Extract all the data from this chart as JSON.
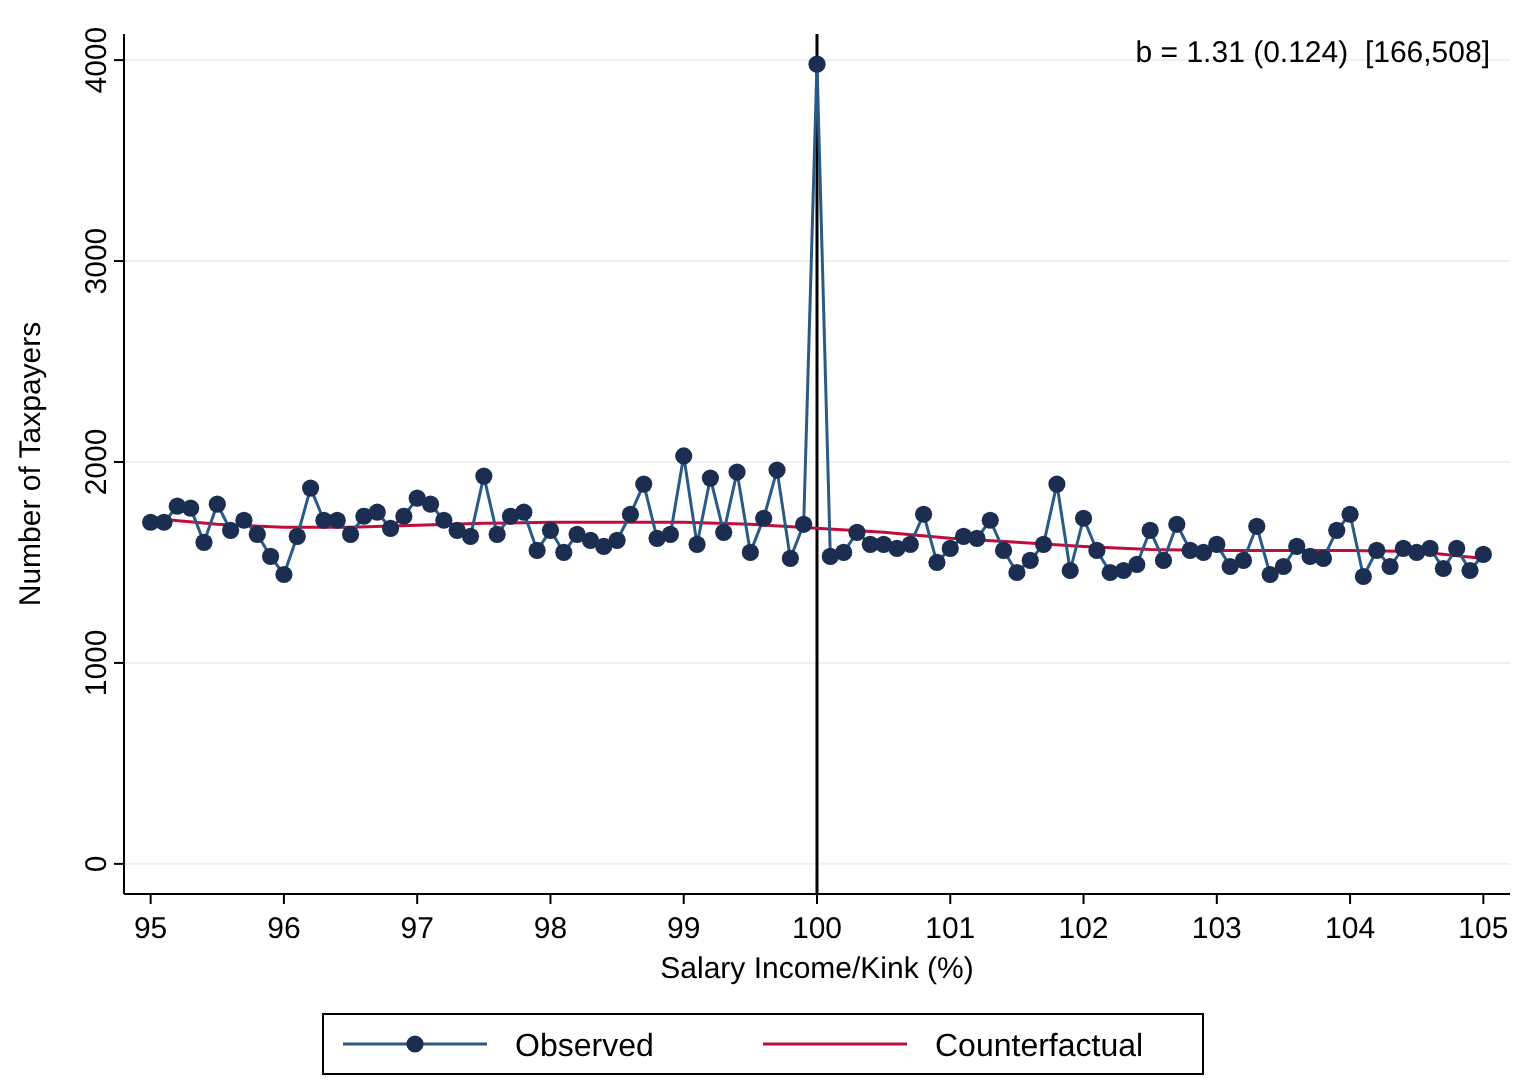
{
  "chart_data": {
    "type": "line",
    "xlabel": "Salary Income/Kink (%)",
    "ylabel": "Number of Taxpayers",
    "annotations": [
      "b = 1.31 (0.124)  [166,508]"
    ],
    "x": [
      95,
      95.1,
      95.2,
      95.3,
      95.4,
      95.5,
      95.6,
      95.7,
      95.8,
      95.9,
      96,
      96.1,
      96.2,
      96.3,
      96.4,
      96.5,
      96.6,
      96.7,
      96.8,
      96.9,
      97,
      97.1,
      97.2,
      97.3,
      97.4,
      97.5,
      97.6,
      97.7,
      97.8,
      97.9,
      98,
      98.1,
      98.2,
      98.3,
      98.4,
      98.5,
      98.6,
      98.7,
      98.8,
      98.9,
      99,
      99.1,
      99.2,
      99.3,
      99.4,
      99.5,
      99.6,
      99.7,
      99.8,
      99.9,
      100,
      100.1,
      100.2,
      100.3,
      100.4,
      100.5,
      100.6,
      100.7,
      100.8,
      100.9,
      101,
      101.1,
      101.2,
      101.3,
      101.4,
      101.5,
      101.6,
      101.7,
      101.8,
      101.9,
      102,
      102.1,
      102.2,
      102.3,
      102.4,
      102.5,
      102.6,
      102.7,
      102.8,
      102.9,
      103,
      103.1,
      103.2,
      103.3,
      103.4,
      103.5,
      103.6,
      103.7,
      103.8,
      103.9,
      104,
      104.1,
      104.2,
      104.3,
      104.4,
      104.5,
      104.6,
      104.7,
      104.8,
      104.9,
      105
    ],
    "series": [
      {
        "name": "Observed",
        "color": "#1c2d52",
        "marker": "circle",
        "values": [
          1700,
          1700,
          1780,
          1770,
          1600,
          1790,
          1660,
          1710,
          1640,
          1530,
          1440,
          1630,
          1870,
          1710,
          1710,
          1640,
          1730,
          1750,
          1670,
          1730,
          1820,
          1790,
          1710,
          1660,
          1630,
          1930,
          1640,
          1730,
          1750,
          1560,
          1660,
          1550,
          1640,
          1610,
          1580,
          1610,
          1740,
          1890,
          1620,
          1640,
          2030,
          1590,
          1920,
          1650,
          1950,
          1550,
          1720,
          1960,
          1520,
          1690,
          3980,
          1530,
          1550,
          1650,
          1590,
          1590,
          1570,
          1590,
          1740,
          1500,
          1570,
          1630,
          1620,
          1710,
          1560,
          1450,
          1510,
          1590,
          1890,
          1460,
          1720,
          1560,
          1450,
          1460,
          1490,
          1660,
          1510,
          1690,
          1560,
          1550,
          1590,
          1480,
          1510,
          1680,
          1440,
          1480,
          1580,
          1530,
          1520,
          1660,
          1740,
          1430,
          1560,
          1480,
          1570,
          1550,
          1570,
          1470,
          1570,
          1460,
          1540
        ]
      },
      {
        "name": "Counterfactual",
        "color": "#c40c3c",
        "marker": "none",
        "x": [
          95,
          95.5,
          96,
          96.5,
          97,
          97.5,
          98,
          98.5,
          99,
          99.5,
          100,
          100.5,
          101,
          101.5,
          102,
          102.5,
          103,
          103.5,
          104,
          104.5,
          105
        ],
        "values": [
          1720,
          1690,
          1675,
          1675,
          1685,
          1695,
          1700,
          1700,
          1700,
          1690,
          1670,
          1650,
          1620,
          1600,
          1580,
          1565,
          1560,
          1560,
          1560,
          1555,
          1520
        ]
      }
    ],
    "xlim": [
      94.8,
      105.2
    ],
    "ylim": [
      -150,
      4130
    ],
    "xticks": [
      95,
      96,
      97,
      98,
      99,
      100,
      101,
      102,
      103,
      104,
      105
    ],
    "yticks": [
      0,
      1000,
      2000,
      3000,
      4000
    ],
    "grid": "y",
    "legend": "bottom",
    "ref_lines": [
      {
        "axis": "x",
        "value": 100,
        "color": "#000000"
      }
    ]
  }
}
